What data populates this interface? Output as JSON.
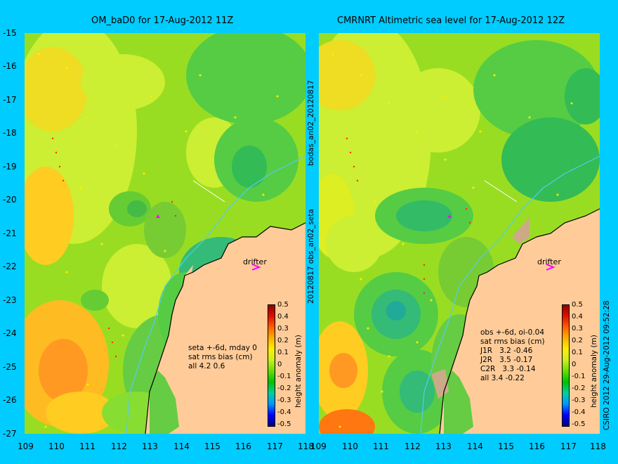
{
  "left": {
    "title": "OM_baD0 for 17-Aug-2012 11Z",
    "side_label": "20120817 obs_an02_seta",
    "stats": [
      "seta +-6d, mday 0",
      "sat rms bias (cm)",
      "all 4.2 0.6"
    ],
    "drifter_label": "drifter"
  },
  "right": {
    "title": "CMRNRT Altimetric sea level  for 17-Aug-2012 12Z",
    "stats": [
      "obs +-6d, oi-0.04",
      "sat rms bias (cm)",
      "J1R   3.2 -0.46",
      "J2R   3.5 -0.17",
      "C2R   3.3 -0.14",
      "all 3.4 -0.22"
    ],
    "drifter_label": "drifter"
  },
  "middle_label": "bodas_an02_20120817",
  "credit": "CSIRO 2012   29-Aug-2012 09:52:28",
  "lat_ticks": [
    "-15",
    "-16",
    "-17",
    "-18",
    "-19",
    "-20",
    "-21",
    "-22",
    "-23",
    "-24",
    "-25",
    "-26",
    "-27"
  ],
  "lon_ticks": [
    "109",
    "110",
    "111",
    "112",
    "113",
    "114",
    "115",
    "116",
    "117",
    "118"
  ],
  "colorbar": {
    "label": "height anomaly (m)",
    "ticks": [
      "0.5",
      "0.4",
      "0.3",
      "0.2",
      "0.1",
      "0",
      "-0.1",
      "-0.2",
      "-0.3",
      "-0.4",
      "-0.5"
    ]
  },
  "colors": {
    "background": "#00ccff",
    "land": "#ffcc99",
    "base": "#99dd22"
  }
}
